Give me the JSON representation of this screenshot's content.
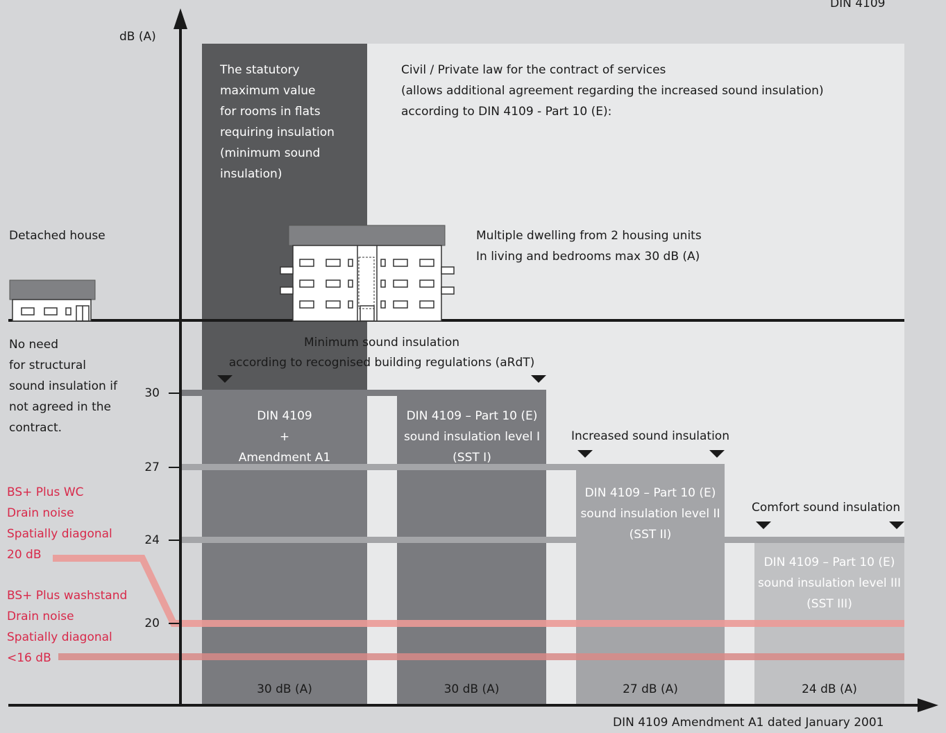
{
  "header": {
    "corner_title": "DIN 4109",
    "y_axis_label": "dB (A)",
    "x_axis_caption": "DIN 4109 Amendment A1 dated January 2001"
  },
  "y_ticks": [
    "30",
    "27",
    "24",
    "20"
  ],
  "statutory_box": [
    "The statutory",
    "maximum value",
    "for rooms in flats",
    "requiring insulation",
    "(minimum sound",
    "insulation)"
  ],
  "civil_law": [
    "Civil / Private law for the contract of services",
    "(allows additional agreement regarding the increased sound insulation)",
    "according to DIN 4109 - Part 10 (E):"
  ],
  "detached_house": {
    "label": "Detached house",
    "note": [
      "No need",
      "for structural",
      "sound insulation if",
      "not agreed in the",
      "contract."
    ]
  },
  "multiple_dwelling": [
    "Multiple dwelling from 2 housing units",
    "In living and bedrooms max 30 dB (A)"
  ],
  "minimum_insulation": [
    "Minimum sound insulation",
    "according to recognised building regulations (aRdT)"
  ],
  "increased_label": "Increased sound insulation",
  "comfort_label": "Comfort sound insulation",
  "columns": [
    {
      "lines": [
        "DIN 4109",
        "+",
        "Amendment A1"
      ],
      "value": "30 dB (A)"
    },
    {
      "lines": [
        "DIN 4109 – Part 10 (E)",
        "sound insulation level I",
        "(SST I)"
      ],
      "value": "30 dB (A)"
    },
    {
      "lines": [
        "DIN 4109 – Part 10 (E)",
        "sound insulation level II",
        "(SST II)"
      ],
      "value": "27 dB (A)"
    },
    {
      "lines": [
        "DIN 4109 – Part 10 (E)",
        "sound insulation level III",
        "(SST III)"
      ],
      "value": "24 dB (A)"
    }
  ],
  "products": [
    {
      "lines": [
        "BS+ Plus WC",
        "Drain noise",
        "Spatially diagonal",
        "20 dB"
      ]
    },
    {
      "lines": [
        "BS+ Plus washstand",
        "Drain noise",
        "Spatially diagonal",
        "<16 dB"
      ]
    }
  ],
  "colors": {
    "background": "#d5d6d8",
    "statutory": "#58595b",
    "level_30": "#7a7b7f",
    "level_27": "#a4a5a8",
    "level_24": "#c0c1c3",
    "light_panel": "#e8e9ea",
    "red_line": "#eb9a97",
    "red_text": "#d8294a"
  }
}
